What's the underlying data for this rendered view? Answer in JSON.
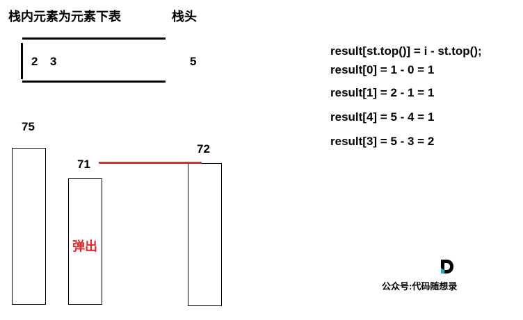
{
  "header": {
    "stack_contents_label": "栈内元素为元素下表",
    "stack_top_label": "栈头"
  },
  "stack": {
    "elements": [
      "2",
      "3"
    ],
    "incoming": "5"
  },
  "chart_data": {
    "type": "bar",
    "values": [
      {
        "label": "75",
        "value": 75
      },
      {
        "label": "71",
        "value": 71
      },
      {
        "label": "72",
        "value": 72
      }
    ],
    "annotations": [
      "弹出"
    ]
  },
  "formulas": [
    "result[st.top()] = i - st.top();",
    "result[0] = 1 - 0 = 1",
    "result[1] = 2 - 1 = 1",
    "result[4] = 5 - 4 = 1",
    "result[3] = 5 - 3 = 2"
  ],
  "watermark": {
    "text": "公众号:代码随想录",
    "logo_letter": "D"
  },
  "colors": {
    "highlight": "#e3272b",
    "logo_accent": "#2aa7b8"
  }
}
